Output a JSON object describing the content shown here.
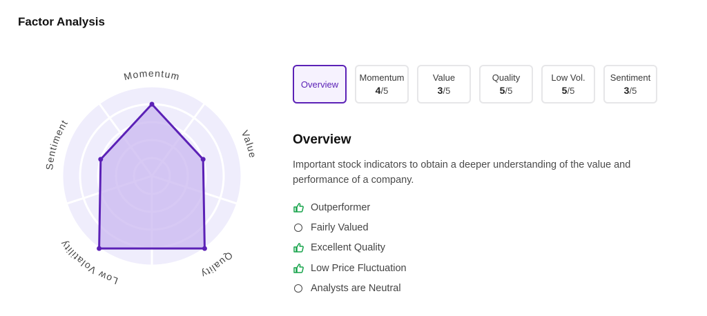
{
  "header": {
    "title": "Factor Analysis"
  },
  "colors": {
    "accent": "#5b21b6",
    "positive": "#16a34a",
    "radar_bg": "#efedfc",
    "radar_fill": "#c9b7f0"
  },
  "chart_data": {
    "type": "radar",
    "axes": [
      "Momentum",
      "Value",
      "Quality",
      "Low Volatility",
      "Sentiment"
    ],
    "values": [
      4,
      3,
      5,
      5,
      3
    ],
    "max": 5
  },
  "tabs": [
    {
      "label": "Overview",
      "score": "",
      "denom": ""
    },
    {
      "label": "Momentum",
      "score": "4",
      "denom": "/5"
    },
    {
      "label": "Value",
      "score": "3",
      "denom": "/5"
    },
    {
      "label": "Quality",
      "score": "5",
      "denom": "/5"
    },
    {
      "label": "Low Vol.",
      "score": "5",
      "denom": "/5"
    },
    {
      "label": "Sentiment",
      "score": "3",
      "denom": "/5"
    }
  ],
  "overview": {
    "heading": "Overview",
    "description": "Important stock indicators to obtain a deeper understanding of the value and performance of a company.",
    "items": [
      {
        "text": "Outperformer",
        "icon": "thumbs-up-icon"
      },
      {
        "text": "Fairly Valued",
        "icon": "circle-icon"
      },
      {
        "text": "Excellent Quality",
        "icon": "thumbs-up-icon"
      },
      {
        "text": "Low Price Fluctuation",
        "icon": "thumbs-up-icon"
      },
      {
        "text": "Analysts are Neutral",
        "icon": "circle-icon"
      }
    ]
  }
}
